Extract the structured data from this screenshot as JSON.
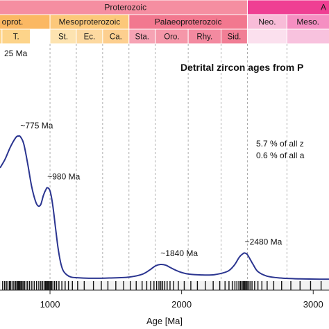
{
  "chart_data": {
    "type": "line",
    "title": "Detrital zircon ages from P",
    "xlabel": "Age [Ma]",
    "ylabel": "",
    "xlim": [
      620,
      3120
    ],
    "ylim": [
      0,
      1
    ],
    "grid": "vertical dashed lines at chronostratigraphic boundaries",
    "x_ticks": [
      1000,
      2000,
      3000
    ],
    "x_tick_labels": [
      "1000",
      "2000",
      "3000"
    ],
    "line_color": "#2b3590",
    "series": [
      {
        "x": [
          620,
          660,
          700,
          740,
          760,
          775,
          800,
          830,
          860,
          890,
          910,
          930,
          950,
          970,
          980,
          1000,
          1020,
          1040,
          1060,
          1080,
          1100,
          1130,
          1160,
          1200,
          1300,
          1450,
          1600,
          1700,
          1760,
          1800,
          1840,
          1880,
          1920,
          1980,
          2050,
          2150,
          2250,
          2350,
          2400,
          2440,
          2470,
          2480,
          2500,
          2540,
          2580,
          2650,
          2750,
          2900,
          3050,
          3120
        ],
        "y": [
          0.74,
          0.8,
          0.88,
          0.94,
          0.95,
          0.945,
          0.9,
          0.77,
          0.62,
          0.52,
          0.49,
          0.5,
          0.56,
          0.6,
          0.61,
          0.59,
          0.5,
          0.36,
          0.22,
          0.12,
          0.065,
          0.035,
          0.022,
          0.018,
          0.014,
          0.016,
          0.022,
          0.04,
          0.07,
          0.095,
          0.105,
          0.1,
          0.082,
          0.058,
          0.042,
          0.036,
          0.038,
          0.06,
          0.1,
          0.155,
          0.178,
          0.18,
          0.17,
          0.11,
          0.058,
          0.028,
          0.016,
          0.01,
          0.008,
          0.008
        ]
      }
    ],
    "rug": [
      640,
      655,
      668,
      680,
      692,
      700,
      712,
      725,
      738,
      748,
      756,
      763,
      770,
      778,
      786,
      795,
      806,
      818,
      830,
      845,
      862,
      880,
      898,
      915,
      930,
      943,
      955,
      965,
      972,
      980,
      988,
      995,
      1003,
      1012,
      1022,
      1035,
      1050,
      1068,
      1090,
      1115,
      1140,
      1170,
      1210,
      1260,
      1330,
      1390,
      1440,
      1500,
      1560,
      1610,
      1655,
      1700,
      1735,
      1765,
      1790,
      1810,
      1828,
      1842,
      1856,
      1872,
      1890,
      1912,
      1940,
      1975,
      2020,
      2070,
      2120,
      2180,
      2240,
      2290,
      2330,
      2360,
      2385,
      2405,
      2420,
      2435,
      2447,
      2458,
      2467,
      2475,
      2482,
      2490,
      2498,
      2508,
      2520,
      2535,
      2555,
      2580,
      2610,
      2650,
      2700,
      2760,
      2830,
      2900,
      2980,
      3060
    ],
    "annotations": [
      {
        "text": "~775 Ma",
        "x": 775
      },
      {
        "text": "~980 Ma",
        "x": 980
      },
      {
        "text": "~1840 Ma",
        "x": 1840
      },
      {
        "text": "~2480 Ma",
        "x": 2480
      }
    ],
    "partial_annotation": "25 Ma",
    "side_text": [
      "5.7 % of all z",
      "0.6 % of all a"
    ],
    "timescale": {
      "eons": [
        {
          "label": "Proterozoic",
          "start": 541,
          "end": 2500,
          "color": "#f58ea1"
        },
        {
          "label": "A",
          "start": 2500,
          "end": 4000,
          "color": "#ef3f93"
        }
      ],
      "eras": [
        {
          "label": "oprot.",
          "start": 541,
          "end": 1000,
          "color": "#fbb863"
        },
        {
          "label": "Mesoproterozoic",
          "start": 1000,
          "end": 1600,
          "color": "#fcc87a"
        },
        {
          "label": "Palaeoproterozoic",
          "start": 1600,
          "end": 2500,
          "color": "#f2788f"
        },
        {
          "label": "Neo.",
          "start": 2500,
          "end": 2800,
          "color": "#f8bcd8"
        },
        {
          "label": "Meso.",
          "start": 2800,
          "end": 3200,
          "color": "#f58fc2"
        }
      ],
      "periods": [
        {
          "label": "",
          "start": 541,
          "end": 635,
          "color": "#fdd48a"
        },
        {
          "label": "T.",
          "start": 635,
          "end": 850,
          "color": "#fdd48a"
        },
        {
          "label": "St.",
          "start": 1000,
          "end": 1200,
          "color": "#fde3b0"
        },
        {
          "label": "Ec.",
          "start": 1200,
          "end": 1400,
          "color": "#fdd9a0"
        },
        {
          "label": "Ca.",
          "start": 1400,
          "end": 1600,
          "color": "#fdcf8f"
        },
        {
          "label": "Sta.",
          "start": 1600,
          "end": 1800,
          "color": "#f6a3b4"
        },
        {
          "label": "Oro.",
          "start": 1800,
          "end": 2050,
          "color": "#f597a9"
        },
        {
          "label": "Rhy.",
          "start": 2050,
          "end": 2300,
          "color": "#f38aa0"
        },
        {
          "label": "Sid.",
          "start": 2300,
          "end": 2500,
          "color": "#f17e95"
        },
        {
          "label": "",
          "start": 2500,
          "end": 2800,
          "color": "#fbe0ee"
        },
        {
          "label": "",
          "start": 2800,
          "end": 3200,
          "color": "#f8c2de"
        }
      ],
      "boundaries": [
        1000,
        1200,
        1400,
        1600,
        1800,
        2050,
        2300,
        2500,
        2800,
        3200
      ]
    }
  }
}
